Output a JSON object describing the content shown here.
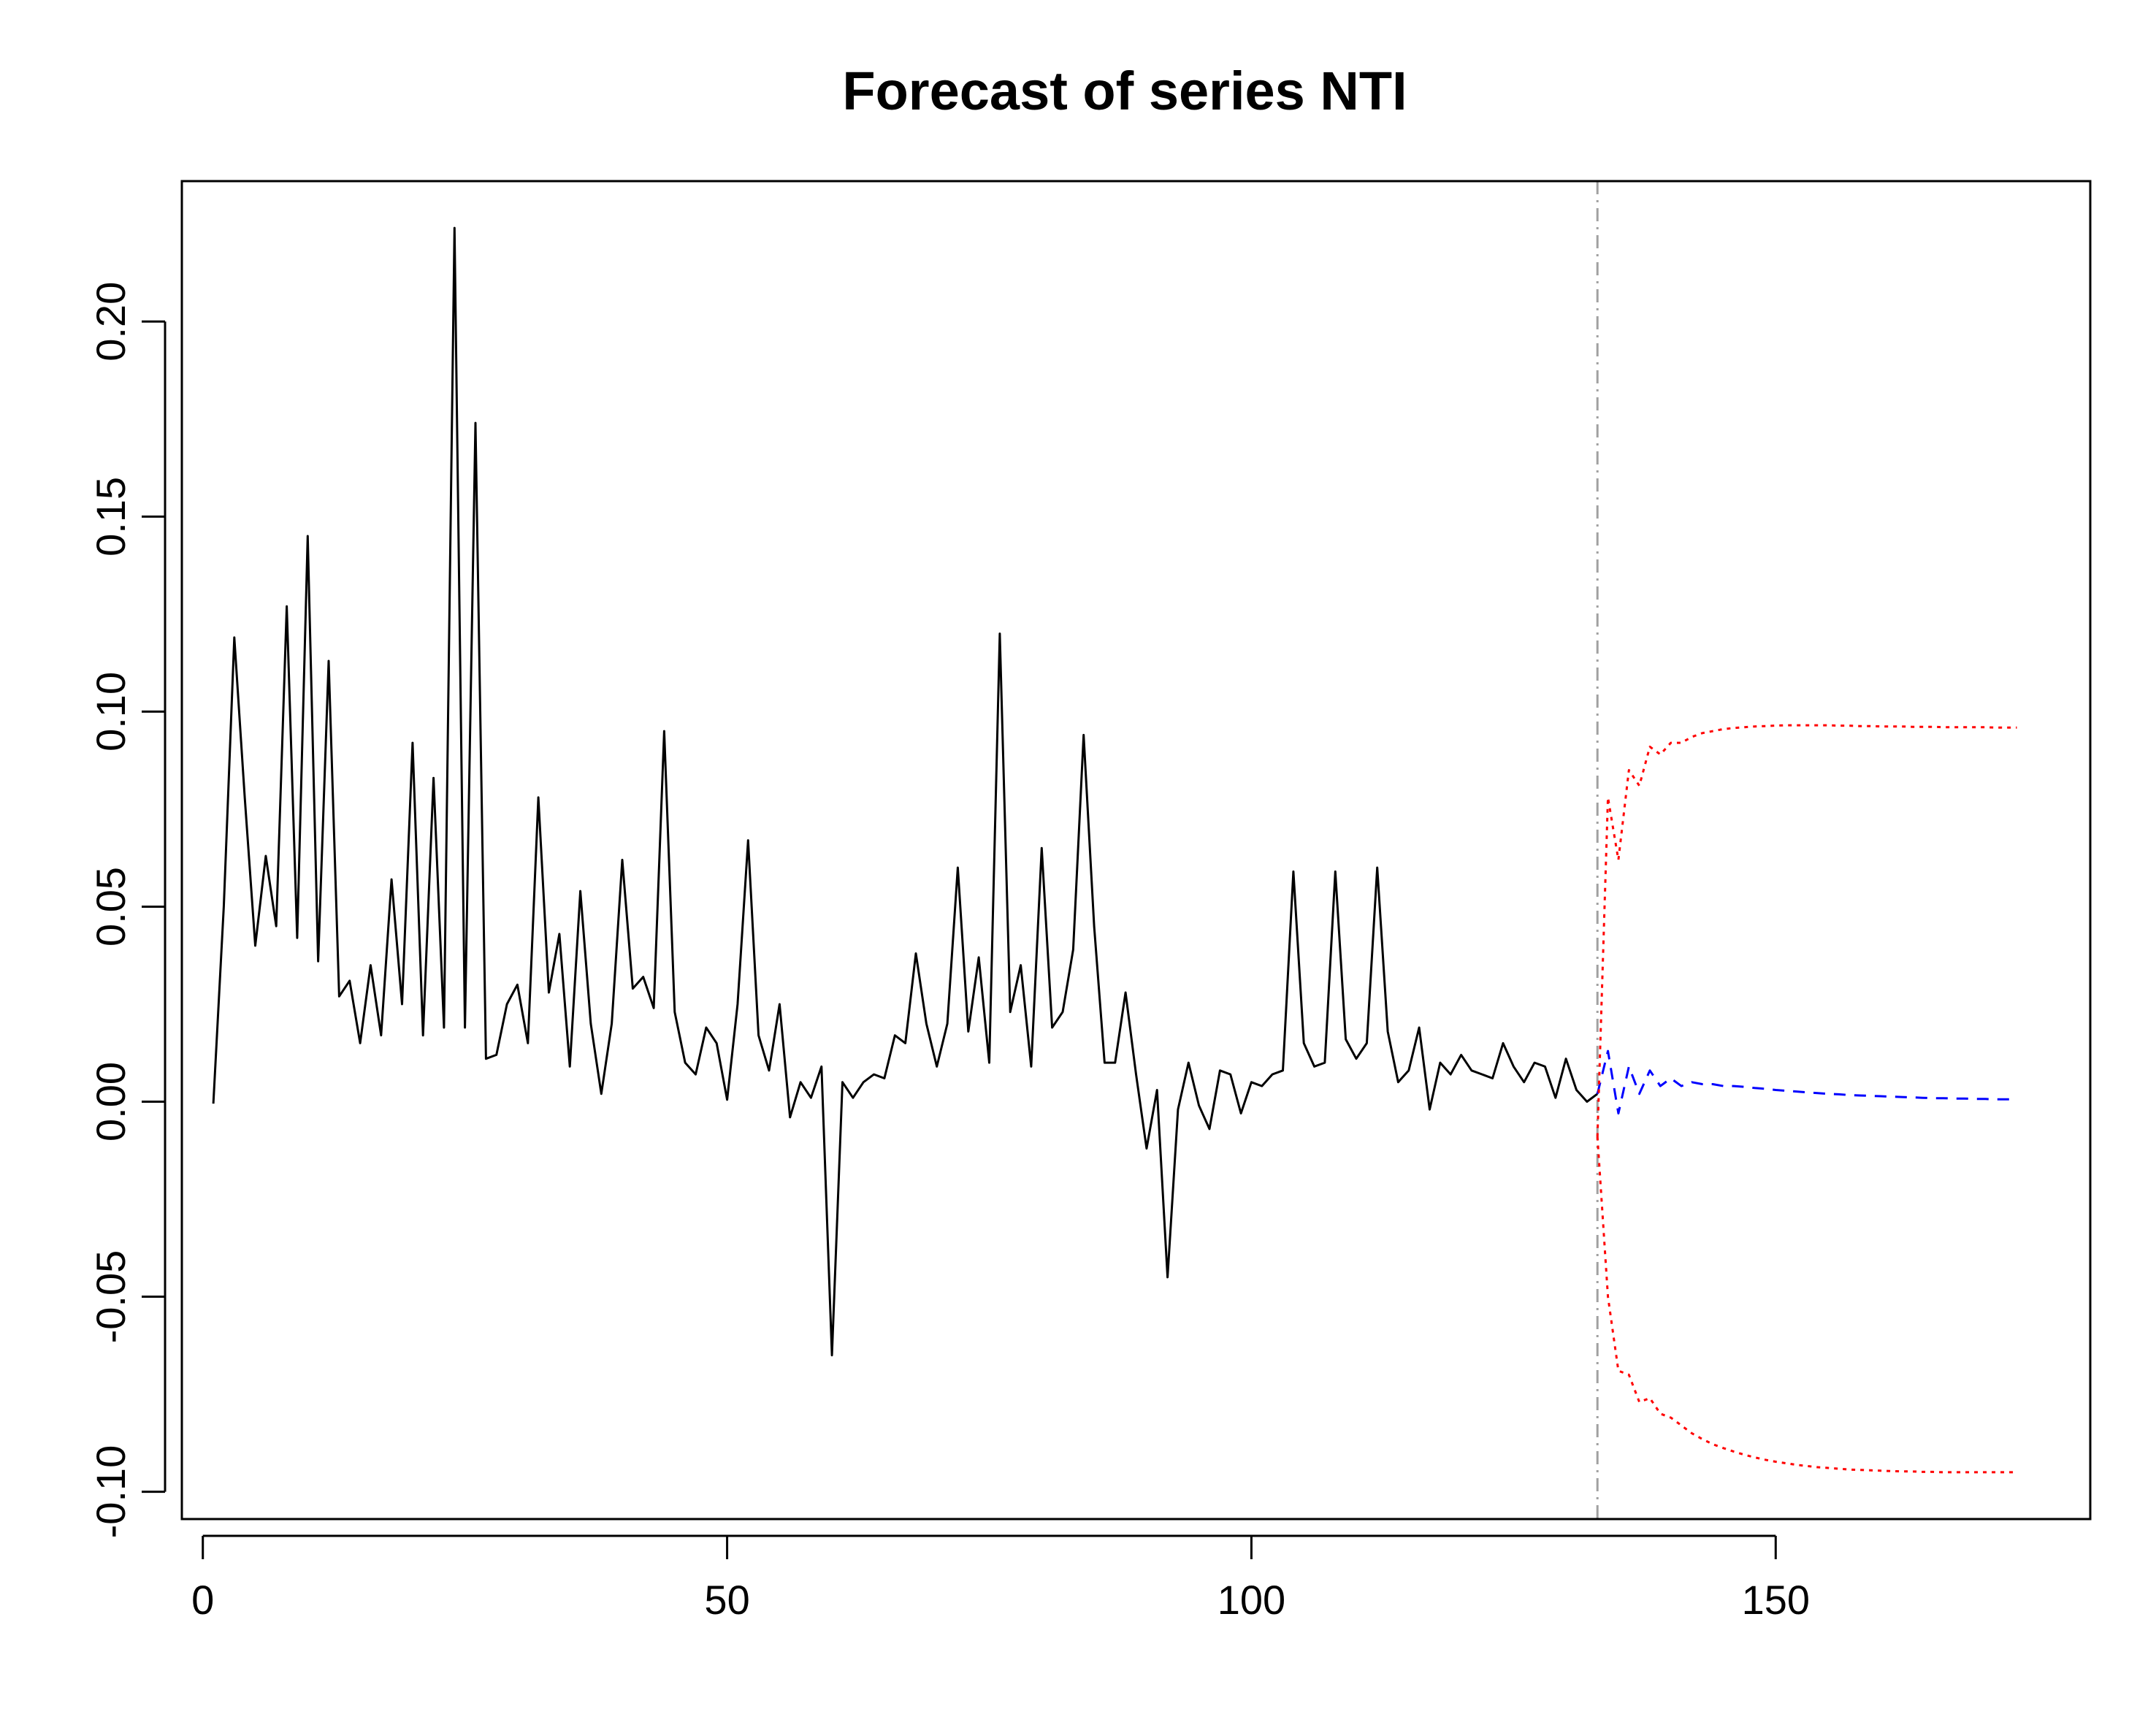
{
  "chart_data": {
    "type": "line",
    "title": "Forecast of series NTI",
    "xlabel": "",
    "ylabel": "",
    "xlim": [
      -2,
      180
    ],
    "ylim": [
      -0.107,
      0.236
    ],
    "x_ticks": [
      0,
      50,
      100,
      150
    ],
    "x_tick_labels": [
      "0",
      "50",
      "100",
      "150"
    ],
    "y_ticks": [
      -0.1,
      -0.05,
      0.0,
      0.05,
      0.1,
      0.15,
      0.2
    ],
    "y_tick_labels": [
      "-0.10",
      "-0.05",
      "0.00",
      "0.05",
      "0.10",
      "0.15",
      "0.20"
    ],
    "grid": false,
    "forecast_origin": 133,
    "colors": {
      "observed": "#000000",
      "forecast": "#0000ff",
      "bounds": "#ff0000",
      "origin_line": "#a0a0a0"
    },
    "series": [
      {
        "style": "solid",
        "color": "#000000",
        "x_start": 1,
        "values": [
          -0.0005,
          0.05,
          0.119,
          0.078,
          0.04,
          0.063,
          0.045,
          0.127,
          0.042,
          0.145,
          0.036,
          0.113,
          0.027,
          0.031,
          0.015,
          0.035,
          0.017,
          0.057,
          0.025,
          0.092,
          0.017,
          0.083,
          0.019,
          0.224,
          0.019,
          0.174,
          0.011,
          0.012,
          0.025,
          0.03,
          0.015,
          0.078,
          0.028,
          0.043,
          0.009,
          0.054,
          0.02,
          0.002,
          0.02,
          0.062,
          0.029,
          0.032,
          0.024,
          0.095,
          0.023,
          0.01,
          0.007,
          0.019,
          0.015,
          0.0005,
          0.025,
          0.067,
          0.017,
          0.008,
          0.025,
          -0.004,
          0.005,
          0.001,
          0.009,
          -0.065,
          0.005,
          0.001,
          0.005,
          0.007,
          0.006,
          0.017,
          0.015,
          0.038,
          0.02,
          0.009,
          0.02,
          0.06,
          0.018,
          0.037,
          0.01,
          0.12,
          0.023,
          0.035,
          0.009,
          0.065,
          0.019,
          0.023,
          0.039,
          0.094,
          0.045,
          0.01,
          0.01,
          0.028,
          0.007,
          -0.012,
          0.003,
          -0.045,
          -0.002,
          0.01,
          -0.001,
          -0.007,
          0.008,
          0.007,
          -0.003,
          0.005,
          0.004,
          0.007,
          0.008,
          0.059,
          0.015,
          0.009,
          0.01,
          0.059,
          0.016,
          0.011,
          0.015,
          0.06,
          0.018,
          0.005,
          0.008,
          0.019,
          -0.002,
          0.01,
          0.007,
          0.012,
          0.008,
          0.007,
          0.006,
          0.015,
          0.009,
          0.005,
          0.01,
          0.009,
          0.001,
          0.011,
          0.003,
          0.0,
          0.002
        ]
      },
      {
        "style": "dashed",
        "color": "#0000ff",
        "x_start": 133,
        "values": [
          0.002,
          0.013,
          -0.003,
          0.009,
          0.002,
          0.008,
          0.004,
          0.006,
          0.004,
          0.005,
          0.0045,
          0.0045,
          0.004,
          0.004,
          0.0038,
          0.0035,
          0.0033,
          0.003,
          0.0028,
          0.0026,
          0.0024,
          0.0022,
          0.002,
          0.0019,
          0.0017,
          0.0016,
          0.0015,
          0.0014,
          0.0013,
          0.0012,
          0.0011,
          0.001,
          0.0009,
          0.0009,
          0.0008,
          0.0008,
          0.0007,
          0.0007,
          0.0006,
          0.0006,
          0.0006
        ]
      },
      {
        "style": "dotted",
        "color": "#ff0000",
        "x_start": 133,
        "values": [
          -0.009,
          0.078,
          0.062,
          0.085,
          0.081,
          0.091,
          0.089,
          0.092,
          0.092,
          0.0935,
          0.0945,
          0.095,
          0.0955,
          0.0958,
          0.096,
          0.0962,
          0.0963,
          0.0964,
          0.0965,
          0.0965,
          0.0965,
          0.0965,
          0.0965,
          0.0964,
          0.0964,
          0.0963,
          0.0963,
          0.0962,
          0.0962,
          0.0962,
          0.0961,
          0.0961,
          0.0961,
          0.096,
          0.096,
          0.096,
          0.096,
          0.096,
          0.0959,
          0.0959,
          0.0959
        ]
      },
      {
        "style": "dotted",
        "color": "#ff0000",
        "x_start": 133,
        "values": [
          -0.009,
          -0.05,
          -0.069,
          -0.07,
          -0.077,
          -0.076,
          -0.08,
          -0.081,
          -0.083,
          -0.085,
          -0.0865,
          -0.0878,
          -0.0888,
          -0.0897,
          -0.0905,
          -0.0912,
          -0.0918,
          -0.0923,
          -0.0927,
          -0.0931,
          -0.0934,
          -0.0937,
          -0.0939,
          -0.0941,
          -0.0943,
          -0.0944,
          -0.0945,
          -0.0946,
          -0.0947,
          -0.0948,
          -0.0948,
          -0.0949,
          -0.0949,
          -0.095,
          -0.095,
          -0.095,
          -0.095,
          -0.095,
          -0.095,
          -0.095,
          -0.095
        ]
      }
    ]
  }
}
